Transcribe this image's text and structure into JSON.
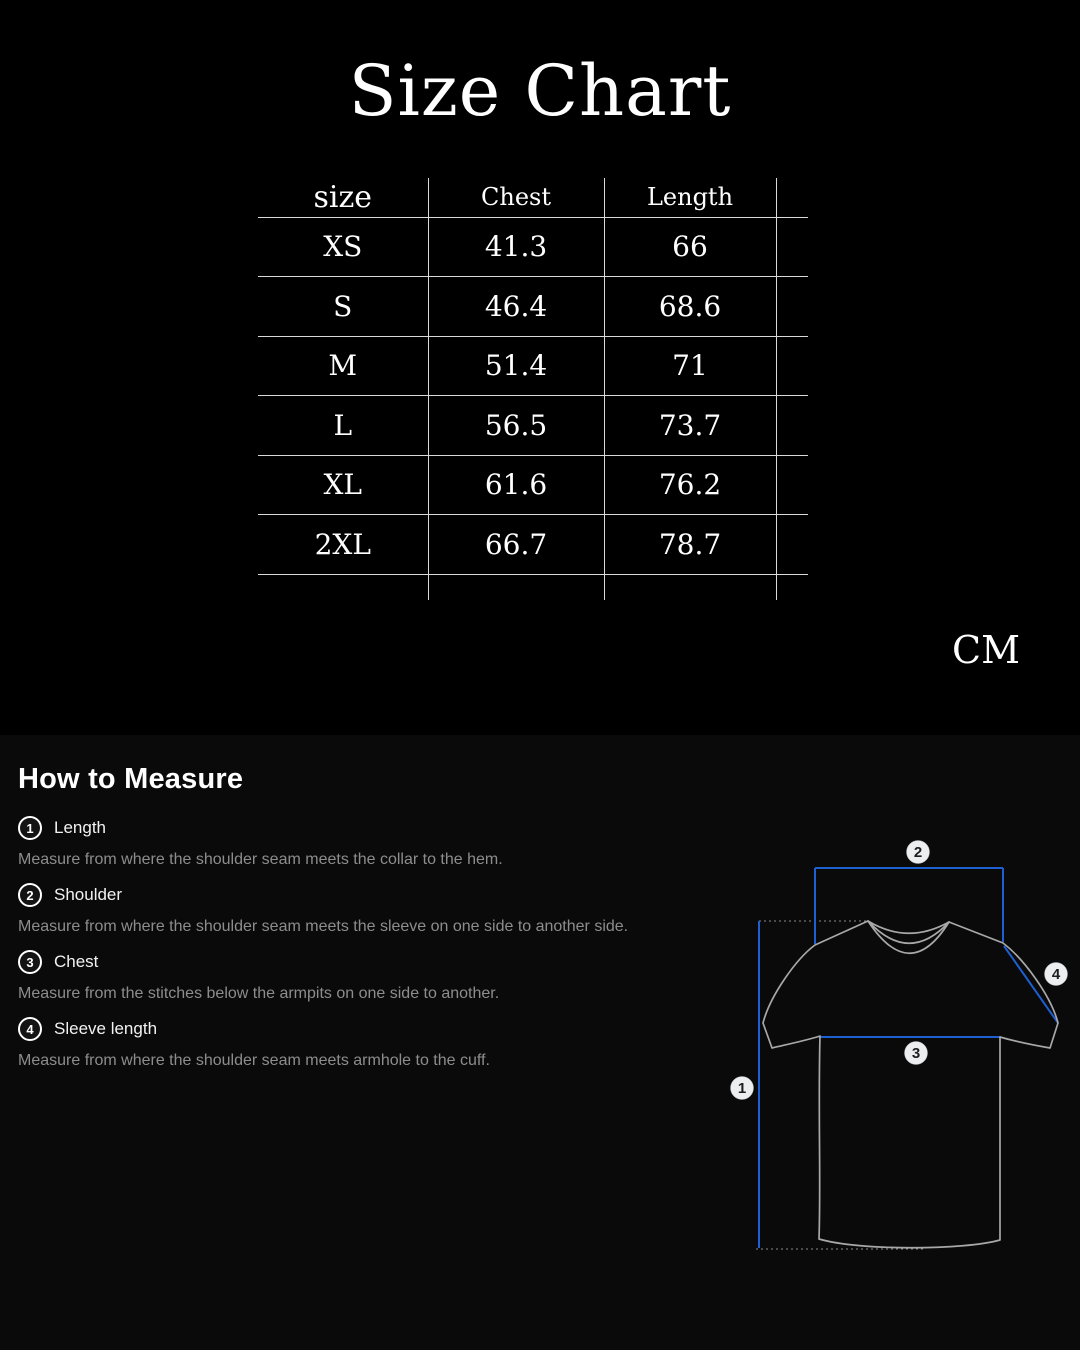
{
  "page": {
    "title": "Size Chart",
    "unit_label": "CM",
    "background_color": "#000000"
  },
  "size_table": {
    "columns": [
      "size",
      "Chest",
      "Length"
    ],
    "rows": [
      {
        "size": "XS",
        "chest": "41.3",
        "length": "66"
      },
      {
        "size": "S",
        "chest": "46.4",
        "length": "68.6"
      },
      {
        "size": "M",
        "chest": "51.4",
        "length": "71"
      },
      {
        "size": "L",
        "chest": "56.5",
        "length": "73.7"
      },
      {
        "size": "XL",
        "chest": "61.6",
        "length": "76.2"
      },
      {
        "size": "2XL",
        "chest": "66.7",
        "length": "78.7"
      }
    ]
  },
  "how_to_measure": {
    "heading": "How to Measure",
    "items": [
      {
        "number": "1",
        "label": "Length",
        "description": "Measure from where the shoulder seam meets the collar to the hem."
      },
      {
        "number": "2",
        "label": "Shoulder",
        "description": "Measure from where the shoulder seam meets the sleeve on one side to another side."
      },
      {
        "number": "3",
        "label": "Chest",
        "description": "Measure from the stitches below the armpits on one side to another."
      },
      {
        "number": "4",
        "label": "Sleeve length",
        "description": "Measure from where the shoulder seam meets armhole to the cuff."
      }
    ]
  },
  "diagram": {
    "markers": [
      "1",
      "2",
      "3",
      "4"
    ],
    "colors": {
      "measure_line": "#1e5fd2",
      "shirt_outline": "#a8a8a8",
      "dotted_line": "#8a8a8a",
      "marker_fill": "#eceef0",
      "marker_number": "#1b1d1f"
    }
  },
  "chart_data": {
    "type": "table",
    "title": "Size Chart",
    "unit": "CM",
    "columns": [
      "size",
      "Chest",
      "Length"
    ],
    "rows": [
      [
        "XS",
        41.3,
        66
      ],
      [
        "S",
        46.4,
        68.6
      ],
      [
        "M",
        51.4,
        71
      ],
      [
        "L",
        56.5,
        73.7
      ],
      [
        "XL",
        61.6,
        76.2
      ],
      [
        "2XL",
        66.7,
        78.7
      ]
    ]
  }
}
